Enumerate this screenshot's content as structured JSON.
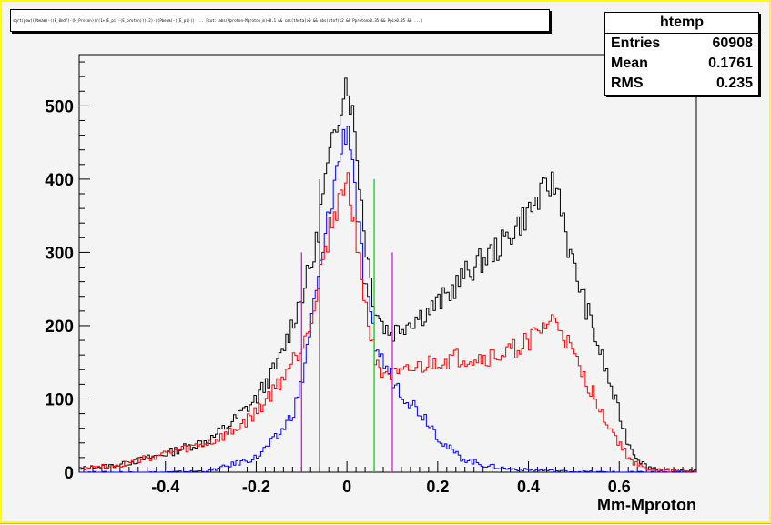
{
  "title_text": "sqrt(pow((Pbeam)-((E_0ndf)-(H_Proton))/(1+(E_pi)-(E_proton))),2)-((Pbeam)-((E_pi))) ... [cut: abs(Mproton-Mproton_m)<0.1 && cos(theta)>0 && abs(dtof)<2 && Pproton>0.35 && Ppi>0.35 && ...]",
  "stats": {
    "name": "htemp",
    "rows": [
      {
        "label": "Entries",
        "value": "60908"
      },
      {
        "label": "Mean",
        "value": "0.1761"
      },
      {
        "label": "RMS",
        "value": "0.235"
      }
    ]
  },
  "colors": {
    "background": "#f4f4f4",
    "frame": "#ffff00",
    "total": "#000000",
    "signal": "#0000ff",
    "background_fit": "#ff0000",
    "cut_outer": "#dd00dd",
    "cut_inner": "#00cc00",
    "cut_center": "#000000"
  },
  "chart_data": {
    "type": "histogram",
    "xlabel": "Mm-Mproton",
    "ylabel": "",
    "xlim": [
      -0.59,
      0.77
    ],
    "ylim": [
      0,
      570
    ],
    "xticks": [
      -0.4,
      -0.2,
      0,
      0.2,
      0.4,
      0.6
    ],
    "xtick_labels": [
      "-0.4",
      "-0.2",
      "0",
      "0.2",
      "0.4",
      "0.6"
    ],
    "yticks": [
      0,
      100,
      200,
      300,
      400,
      500
    ],
    "ytick_labels": [
      "0",
      "100",
      "200",
      "300",
      "400",
      "500"
    ],
    "bin_width": 0.01,
    "series": [
      {
        "color": "#000000",
        "x": [
          -0.59,
          -0.5,
          -0.4,
          -0.3,
          -0.25,
          -0.2,
          -0.15,
          -0.1,
          -0.07,
          -0.05,
          -0.03,
          -0.01,
          0,
          0.01,
          0.02,
          0.04,
          0.06,
          0.08,
          0.1,
          0.12,
          0.15,
          0.18,
          0.22,
          0.26,
          0.3,
          0.34,
          0.38,
          0.42,
          0.45,
          0.47,
          0.49,
          0.52,
          0.55,
          0.58,
          0.6,
          0.62,
          0.64,
          0.66,
          0.7,
          0.77
        ],
        "values": [
          5,
          10,
          25,
          45,
          70,
          100,
          150,
          240,
          300,
          390,
          450,
          520,
          540,
          500,
          450,
          320,
          230,
          200,
          190,
          200,
          210,
          220,
          240,
          270,
          290,
          310,
          340,
          370,
          395,
          380,
          300,
          240,
          180,
          120,
          80,
          40,
          20,
          8,
          3,
          2
        ]
      },
      {
        "color": "#0000ff",
        "x": [
          -0.59,
          -0.4,
          -0.3,
          -0.2,
          -0.15,
          -0.12,
          -0.1,
          -0.08,
          -0.06,
          -0.04,
          -0.02,
          0,
          0.01,
          0.02,
          0.04,
          0.06,
          0.08,
          0.1,
          0.12,
          0.15,
          0.18,
          0.2,
          0.22,
          0.25,
          0.3,
          0.35,
          0.4,
          0.45,
          0.5,
          0.6,
          0.77
        ],
        "values": [
          0,
          0,
          2,
          20,
          50,
          80,
          120,
          200,
          270,
          350,
          420,
          475,
          450,
          370,
          250,
          180,
          150,
          130,
          110,
          90,
          70,
          50,
          35,
          20,
          10,
          5,
          3,
          2,
          1,
          0,
          0
        ]
      },
      {
        "color": "#ff0000",
        "x": [
          -0.59,
          -0.5,
          -0.4,
          -0.3,
          -0.25,
          -0.2,
          -0.15,
          -0.1,
          -0.07,
          -0.05,
          -0.03,
          -0.01,
          0,
          0.01,
          0.02,
          0.04,
          0.06,
          0.08,
          0.1,
          0.12,
          0.15,
          0.2,
          0.25,
          0.3,
          0.35,
          0.4,
          0.43,
          0.45,
          0.47,
          0.49,
          0.52,
          0.55,
          0.58,
          0.6,
          0.62,
          0.64,
          0.66,
          0.7,
          0.77
        ],
        "values": [
          5,
          10,
          25,
          40,
          55,
          80,
          120,
          170,
          230,
          300,
          350,
          380,
          395,
          370,
          330,
          230,
          160,
          140,
          130,
          130,
          140,
          150,
          155,
          155,
          160,
          180,
          195,
          205,
          200,
          170,
          130,
          100,
          60,
          40,
          20,
          10,
          4,
          2,
          1
        ]
      }
    ],
    "vlines": [
      {
        "x": -0.1,
        "height": 300,
        "color": "#dd00dd"
      },
      {
        "x": 0.1,
        "height": 300,
        "color": "#dd00dd"
      },
      {
        "x": 0.06,
        "height": 400,
        "color": "#00cc00"
      },
      {
        "x": -0.06,
        "height": 400,
        "color": "#000000"
      }
    ]
  }
}
